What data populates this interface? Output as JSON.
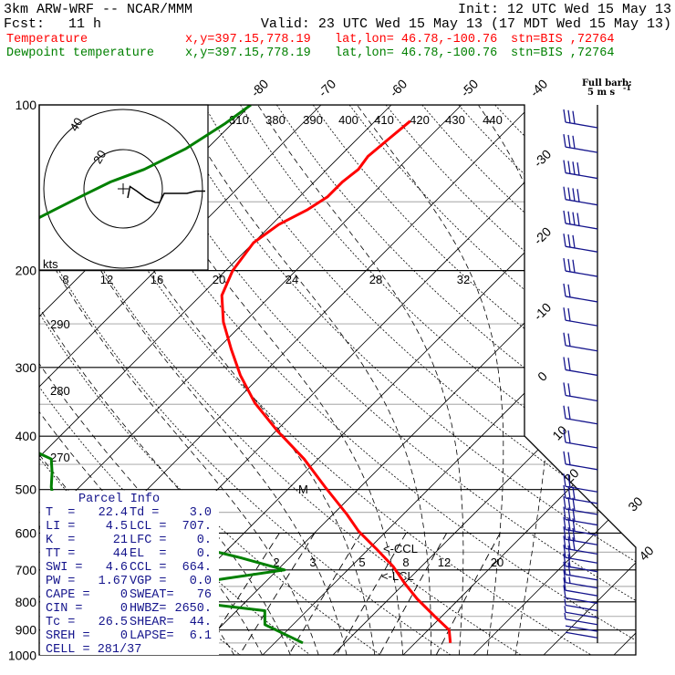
{
  "header": {
    "model": "3km ARW-WRF -- NCAR/MMM",
    "init": "Init: 12 UTC Wed 15 May 13",
    "fcst_label": "Fcst:",
    "fcst_value": "11 h",
    "valid": "Valid: 23 UTC Wed 15 May 13 (17 MDT Wed 15 May 13)"
  },
  "legend": [
    {
      "name": "Temperature",
      "xy": "x,y=397.15,778.19",
      "latlon": "lat,lon= 46.78,-100.76",
      "stn": "stn=BIS ,72764",
      "color": "#ff0000"
    },
    {
      "name": "Dewpoint temperature",
      "xy": "x,y=397.15,778.19",
      "latlon": "lat,lon= 46.78,-100.76",
      "stn": "stn=BIS ,72764",
      "color": "#008000"
    }
  ],
  "colors": {
    "temperature": "#ff0000",
    "dewpoint": "#008000",
    "wind": "#14148c",
    "parcel_text": "#14148c"
  },
  "chart_data": {
    "type": "line",
    "title": "Skew-T log-P sounding",
    "yaxis": {
      "label": "Pressure (hPa)",
      "ticks": [
        "100",
        "200",
        "300",
        "400",
        "500",
        "600",
        "700",
        "800",
        "900",
        "1000"
      ],
      "range": [
        100,
        1000
      ]
    },
    "isotherm_labels": [
      "-80",
      "-70",
      "-60",
      "-50",
      "-40",
      "-30",
      "-20",
      "-10",
      "0",
      "10",
      "20",
      "30",
      "40"
    ],
    "dry_adiabat_labels": [
      "290",
      "280",
      "270"
    ],
    "moist_adiabat_labels": [
      "310",
      "380",
      "390",
      "400",
      "410",
      "420",
      "430",
      "440"
    ],
    "mixing_ratio_labels": [
      "2",
      "3",
      "5",
      "8",
      "12",
      "20"
    ],
    "upper_axis_labels": [
      "8",
      "12",
      "16",
      "20",
      "24",
      "28",
      "32"
    ],
    "series": [
      {
        "name": "Temperature",
        "unit": "C",
        "p": [
          107,
          115,
          124,
          131,
          138,
          147,
          155,
          165,
          178,
          200,
          222,
          248,
          278,
          310,
          348,
          390,
          440,
          495,
          555,
          595,
          640,
          690,
          740,
          790,
          850,
          900,
          950
        ],
        "t": [
          -55,
          -55.5,
          -56,
          -55.5,
          -56,
          -56,
          -57,
          -59,
          -60,
          -59,
          -57,
          -53,
          -48,
          -43,
          -37,
          -30,
          -22,
          -15,
          -8,
          -4,
          1,
          6,
          10,
          14,
          19,
          23,
          25
        ]
      },
      {
        "name": "Dewpoint temperature",
        "unit": "C",
        "p": [
          100,
          108,
          120,
          131,
          138,
          146,
          155,
          165,
          177,
          190,
          205,
          222,
          248,
          278,
          310,
          345,
          385,
          420,
          440,
          465,
          495,
          520,
          555,
          580,
          610,
          635,
          665,
          700,
          725,
          745,
          770,
          800,
          830,
          880,
          950
        ],
        "t": [
          -80,
          -81,
          -83,
          -86,
          -89,
          -91,
          -93,
          -95,
          -97,
          -98,
          -100,
          -100,
          -99,
          -95,
          -88,
          -80,
          -72,
          -63,
          -58,
          -56,
          -54,
          -52,
          -49,
          -42,
          -35,
          -25,
          -17,
          -9,
          -16,
          -21,
          -24,
          -18,
          -6,
          -4,
          4
        ]
      }
    ],
    "wind_barbs": {
      "unit": "m/s",
      "p": [
        110,
        122,
        136,
        152,
        168,
        185,
        205,
        228,
        252,
        280,
        310,
        345,
        380,
        420,
        460,
        505,
        530,
        555,
        580,
        605,
        630,
        655,
        680,
        705,
        730,
        755,
        780,
        805,
        830,
        855,
        880,
        905,
        930
      ],
      "speed": [
        15,
        17,
        20,
        20,
        20,
        15,
        15,
        10,
        10,
        10,
        10,
        10,
        10,
        10,
        12,
        12,
        15,
        17,
        17,
        17,
        15,
        15,
        12,
        10,
        10,
        8,
        5,
        5,
        3,
        3,
        3,
        2,
        2
      ]
    },
    "hodograph": {
      "units": "kts",
      "ring_labels": [
        "20",
        "40"
      ],
      "u": [
        1,
        1.5,
        3,
        5,
        7,
        8,
        9,
        12,
        14,
        16,
        18
      ],
      "v": [
        -2,
        0.5,
        -0.5,
        -2,
        -3,
        -3,
        -1,
        -1,
        -1,
        -0.5,
        -0.5
      ]
    },
    "markers": [
      "<-CCL",
      "<-LCL",
      "M"
    ]
  },
  "hodograph": {
    "label": "kts"
  },
  "barb_key": {
    "line1": "Full barb:",
    "line2": "5 m s",
    "sup": "-1"
  },
  "parcel": {
    "title": "Parcel Info",
    "rows": [
      {
        "l1": "T  =",
        "v1": "22.4",
        "l2": "Td =",
        "v2": "3.0"
      },
      {
        "l1": "LI =",
        "v1": "4.5",
        "l2": "LCL =",
        "v2": "707."
      },
      {
        "l1": "K  =",
        "v1": "21",
        "l2": "LFC =",
        "v2": "0."
      },
      {
        "l1": "TT =",
        "v1": "44",
        "l2": "EL  =",
        "v2": "0."
      },
      {
        "l1": "SWI =",
        "v1": "4.6",
        "l2": "CCL =",
        "v2": "664."
      },
      {
        "l1": "PW =",
        "v1": "1.67",
        "l2": "VGP =",
        "v2": "0.0"
      },
      {
        "l1": "CAPE =",
        "v1": "0",
        "l2": "SWEAT=",
        "v2": "76"
      },
      {
        "l1": "CIN =",
        "v1": "0",
        "l2": "HWBZ=",
        "v2": "2650."
      },
      {
        "l1": "Tc =",
        "v1": "26.5",
        "l2": "SHEAR=",
        "v2": "44."
      },
      {
        "l1": "SREH =",
        "v1": "0",
        "l2": "LAPSE=",
        "v2": "6.1"
      },
      {
        "l1": "CELL = 281/37",
        "v1": "",
        "l2": "",
        "v2": ""
      }
    ]
  }
}
